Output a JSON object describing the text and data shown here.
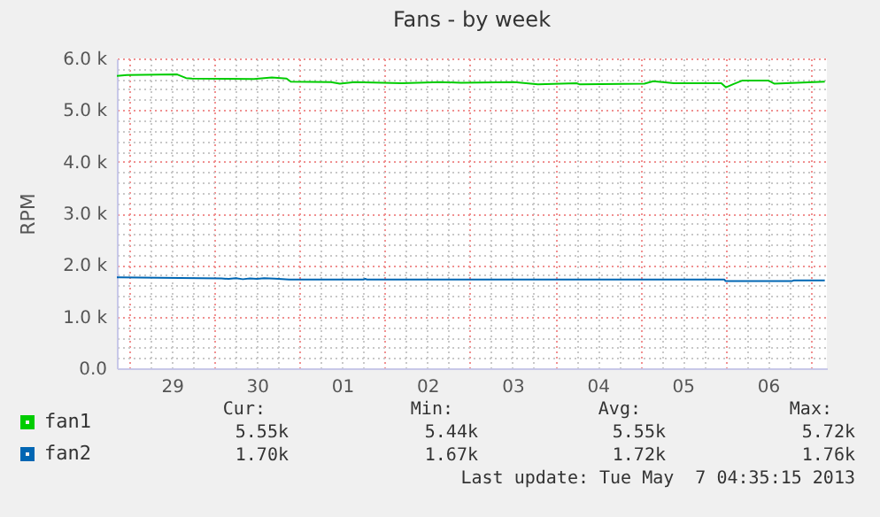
{
  "chart_data": {
    "type": "line",
    "title": "Fans - by week",
    "ylabel": "RPM",
    "xlim": [
      "2013-04-28T20:30",
      "2013-05-07T04:35"
    ],
    "xticks": [
      {
        "value": "2013-04-29T00:00",
        "label": null
      },
      {
        "value": "2013-04-29T06:00",
        "label": null
      },
      {
        "value": "2013-04-29T12:00",
        "label": "29"
      },
      {
        "value": "2013-04-29T18:00",
        "label": null
      },
      {
        "value": "2013-04-30T00:00",
        "label": null
      },
      {
        "value": "2013-04-30T06:00",
        "label": null
      },
      {
        "value": "2013-04-30T12:00",
        "label": "30"
      },
      {
        "value": "2013-04-30T18:00",
        "label": null
      },
      {
        "value": "2013-05-01T00:00",
        "label": null
      },
      {
        "value": "2013-05-01T06:00",
        "label": null
      },
      {
        "value": "2013-05-01T12:00",
        "label": "01"
      },
      {
        "value": "2013-05-01T18:00",
        "label": null
      },
      {
        "value": "2013-05-02T00:00",
        "label": null
      },
      {
        "value": "2013-05-02T06:00",
        "label": null
      },
      {
        "value": "2013-05-02T12:00",
        "label": "02"
      },
      {
        "value": "2013-05-02T18:00",
        "label": null
      },
      {
        "value": "2013-05-03T00:00",
        "label": null
      },
      {
        "value": "2013-05-03T06:00",
        "label": null
      },
      {
        "value": "2013-05-03T12:00",
        "label": "03"
      },
      {
        "value": "2013-05-03T18:00",
        "label": null
      },
      {
        "value": "2013-05-04T00:00",
        "label": null
      },
      {
        "value": "2013-05-04T06:00",
        "label": null
      },
      {
        "value": "2013-05-04T12:00",
        "label": "04"
      },
      {
        "value": "2013-05-04T18:00",
        "label": null
      },
      {
        "value": "2013-05-05T00:00",
        "label": null
      },
      {
        "value": "2013-05-05T06:00",
        "label": null
      },
      {
        "value": "2013-05-05T12:00",
        "label": "05"
      },
      {
        "value": "2013-05-05T18:00",
        "label": null
      },
      {
        "value": "2013-05-06T00:00",
        "label": null
      },
      {
        "value": "2013-05-06T06:00",
        "label": null
      },
      {
        "value": "2013-05-06T12:00",
        "label": "06"
      },
      {
        "value": "2013-05-06T18:00",
        "label": null
      },
      {
        "value": "2013-05-07T00:00",
        "label": null
      }
    ],
    "ylim": [
      0,
      6000
    ],
    "yticks": [
      {
        "value": 0,
        "label": "0.0"
      },
      {
        "value": 200,
        "label": null
      },
      {
        "value": 400,
        "label": null
      },
      {
        "value": 600,
        "label": null
      },
      {
        "value": 800,
        "label": null
      },
      {
        "value": 1000,
        "label": "1.0 k"
      },
      {
        "value": 1200,
        "label": null
      },
      {
        "value": 1400,
        "label": null
      },
      {
        "value": 1600,
        "label": null
      },
      {
        "value": 1800,
        "label": null
      },
      {
        "value": 2000,
        "label": "2.0 k"
      },
      {
        "value": 2200,
        "label": null
      },
      {
        "value": 2400,
        "label": null
      },
      {
        "value": 2600,
        "label": null
      },
      {
        "value": 2800,
        "label": null
      },
      {
        "value": 3000,
        "label": "3.0 k"
      },
      {
        "value": 3200,
        "label": null
      },
      {
        "value": 3400,
        "label": null
      },
      {
        "value": 3600,
        "label": null
      },
      {
        "value": 3800,
        "label": null
      },
      {
        "value": 4000,
        "label": "4.0 k"
      },
      {
        "value": 4200,
        "label": null
      },
      {
        "value": 4400,
        "label": null
      },
      {
        "value": 4600,
        "label": null
      },
      {
        "value": 4800,
        "label": null
      },
      {
        "value": 5000,
        "label": "5.0 k"
      },
      {
        "value": 5200,
        "label": null
      },
      {
        "value": 5400,
        "label": null
      },
      {
        "value": 5600,
        "label": null
      },
      {
        "value": 5800,
        "label": null
      },
      {
        "value": 6000,
        "label": "6.0 k"
      }
    ],
    "grid": true,
    "legend": "bottom left",
    "line_style": "solid",
    "series": [
      {
        "name": "fan1",
        "color": "#00cc00",
        "x": [
          "2013-04-28T20:30",
          "2013-04-28T23:20",
          "2013-04-29T13:30",
          "2013-04-29T16:00",
          "2013-04-29T17:40",
          "2013-04-30T11:10",
          "2013-04-30T16:10",
          "2013-04-30T20:20",
          "2013-04-30T21:30",
          "2013-05-01T08:50",
          "2013-05-01T11:20",
          "2013-05-01T15:30",
          "2013-05-02T04:50",
          "2013-05-02T15:40",
          "2013-05-02T21:30",
          "2013-05-03T12:30",
          "2013-05-03T19:10",
          "2013-05-04T06:00",
          "2013-05-04T06:50",
          "2013-05-05T01:10",
          "2013-05-05T03:40",
          "2013-05-05T09:30",
          "2013-05-05T22:50",
          "2013-05-06T00:10",
          "2013-05-06T02:10",
          "2013-05-06T04:40",
          "2013-05-06T12:10",
          "2013-05-06T13:50",
          "2013-05-07T04:00"
        ],
        "values": [
          5660,
          5680,
          5690,
          5620,
          5610,
          5600,
          5630,
          5610,
          5550,
          5540,
          5510,
          5540,
          5520,
          5540,
          5530,
          5540,
          5500,
          5520,
          5500,
          5510,
          5560,
          5520,
          5520,
          5440,
          5500,
          5570,
          5570,
          5510,
          5550
        ]
      },
      {
        "name": "fan2",
        "color": "#0066b3",
        "x": [
          "2013-04-28T20:30",
          "2013-04-30T02:00",
          "2013-04-30T04:00",
          "2013-04-30T06:00",
          "2013-04-30T08:00",
          "2013-04-30T10:00",
          "2013-04-30T12:00",
          "2013-04-30T14:00",
          "2013-04-30T17:00",
          "2013-04-30T21:00",
          "2013-05-01T18:00",
          "2013-05-01T18:30",
          "2013-05-01T19:00",
          "2013-05-05T23:40",
          "2013-05-06T00:00",
          "2013-05-06T18:50",
          "2013-05-06T19:10",
          "2013-05-07T04:00"
        ],
        "values": [
          1760,
          1740,
          1730,
          1745,
          1725,
          1740,
          1730,
          1745,
          1735,
          1720,
          1720,
          1730,
          1720,
          1720,
          1690,
          1690,
          1700,
          1700
        ]
      }
    ],
    "annotations": [
      "Cur:",
      "Min:",
      "Avg:",
      "Max:",
      "5.55k",
      "5.44k",
      "5.55k",
      "5.72k",
      "1.70k",
      "1.67k",
      "1.72k",
      "1.76k",
      "Last update: Tue May  7 04:35:15 2013"
    ]
  }
}
